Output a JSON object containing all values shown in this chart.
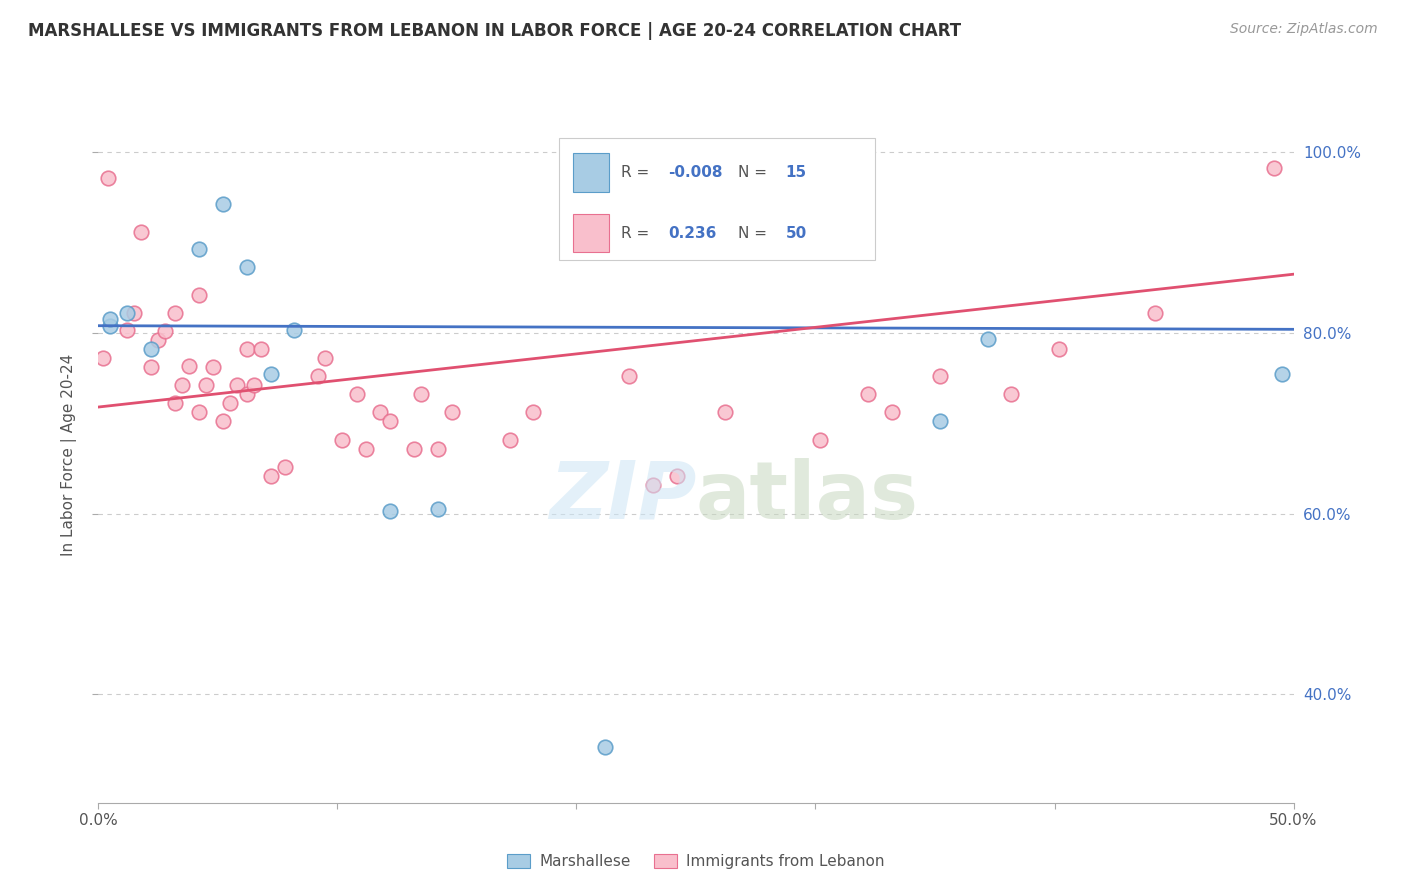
{
  "title": "MARSHALLESE VS IMMIGRANTS FROM LEBANON IN LABOR FORCE | AGE 20-24 CORRELATION CHART",
  "source": "Source: ZipAtlas.com",
  "ylabel": "In Labor Force | Age 20-24",
  "xlim": [
    0.0,
    0.5
  ],
  "ylim": [
    0.28,
    1.05
  ],
  "xticks": [
    0.0,
    0.1,
    0.2,
    0.3,
    0.4,
    0.5
  ],
  "xticklabels": [
    "0.0%",
    "",
    "",
    "",
    "",
    "50.0%"
  ],
  "yticks": [
    0.4,
    0.6,
    0.8,
    1.0
  ],
  "yticklabels": [
    "40.0%",
    "60.0%",
    "80.0%",
    "100.0%"
  ],
  "legend_labels": [
    "Marshallese",
    "Immigrants from Lebanon"
  ],
  "legend_r": [
    -0.008,
    0.236
  ],
  "legend_n": [
    15,
    50
  ],
  "blue_color": "#a8cce4",
  "pink_color": "#f9bfcc",
  "blue_edge_color": "#5b9dc9",
  "pink_edge_color": "#e87090",
  "blue_line_color": "#4472c4",
  "pink_line_color": "#e05070",
  "background_color": "#ffffff",
  "blue_points_x": [
    0.005,
    0.005,
    0.012,
    0.022,
    0.042,
    0.052,
    0.062,
    0.082,
    0.072,
    0.122,
    0.142,
    0.212,
    0.352,
    0.372,
    0.495
  ],
  "blue_points_y": [
    0.808,
    0.815,
    0.822,
    0.782,
    0.893,
    0.943,
    0.873,
    0.803,
    0.755,
    0.603,
    0.605,
    0.342,
    0.703,
    0.793,
    0.755
  ],
  "pink_points_x": [
    0.002,
    0.004,
    0.012,
    0.015,
    0.018,
    0.022,
    0.025,
    0.028,
    0.032,
    0.032,
    0.035,
    0.038,
    0.042,
    0.042,
    0.045,
    0.048,
    0.052,
    0.055,
    0.058,
    0.062,
    0.062,
    0.065,
    0.068,
    0.072,
    0.078,
    0.092,
    0.095,
    0.102,
    0.108,
    0.112,
    0.118,
    0.122,
    0.132,
    0.135,
    0.142,
    0.148,
    0.172,
    0.182,
    0.222,
    0.232,
    0.242,
    0.262,
    0.302,
    0.322,
    0.332,
    0.352,
    0.382,
    0.402,
    0.442,
    0.492
  ],
  "pink_points_y": [
    0.772,
    0.972,
    0.803,
    0.822,
    0.912,
    0.762,
    0.792,
    0.802,
    0.822,
    0.723,
    0.742,
    0.763,
    0.842,
    0.712,
    0.742,
    0.762,
    0.703,
    0.722,
    0.742,
    0.782,
    0.732,
    0.742,
    0.782,
    0.642,
    0.652,
    0.752,
    0.772,
    0.682,
    0.732,
    0.672,
    0.712,
    0.702,
    0.672,
    0.732,
    0.672,
    0.712,
    0.682,
    0.712,
    0.752,
    0.632,
    0.642,
    0.712,
    0.682,
    0.732,
    0.712,
    0.752,
    0.732,
    0.782,
    0.822,
    0.982
  ],
  "blue_trendline_x": [
    0.0,
    0.5
  ],
  "blue_trendline_y": [
    0.808,
    0.804
  ],
  "pink_trendline_x": [
    0.0,
    0.5
  ],
  "pink_trendline_y": [
    0.718,
    0.865
  ]
}
